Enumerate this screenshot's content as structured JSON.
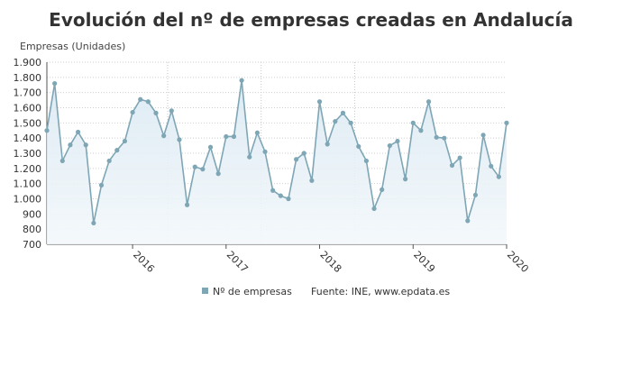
{
  "chart_data": {
    "type": "area",
    "title": "Evolución del nº de empresas creadas en Andalucía",
    "ylabel": "Empresas (Unidades)",
    "xlabel": "",
    "ylim": [
      700,
      1900
    ],
    "yticks": [
      "700",
      "800",
      "900",
      "1.000",
      "1.100",
      "1.200",
      "1.300",
      "1.400",
      "1.500",
      "1.600",
      "1.700",
      "1.800",
      "1.900"
    ],
    "x_tick_labels": [
      {
        "label": "2016",
        "index": 11
      },
      {
        "label": "2017",
        "index": 23
      },
      {
        "label": "2018",
        "index": 35
      },
      {
        "label": "2019",
        "index": 47
      },
      {
        "label": "2020",
        "index": 59
      }
    ],
    "grid": true,
    "legend_position": "bottom",
    "series": [
      {
        "name": "Nº de empresas",
        "color": "#7ea6b5",
        "values": [
          1450,
          1760,
          1250,
          1355,
          1440,
          1355,
          840,
          1090,
          1250,
          1320,
          1380,
          1570,
          1655,
          1640,
          1565,
          1415,
          1580,
          1390,
          960,
          1210,
          1195,
          1340,
          1165,
          1410,
          1410,
          1780,
          1275,
          1435,
          1310,
          1055,
          1020,
          1000,
          1260,
          1300,
          1120,
          1640,
          1360,
          1510,
          1565,
          1500,
          1345,
          1250,
          935,
          1060,
          1350,
          1380,
          1130,
          1500,
          1450,
          1640,
          1405,
          1400,
          1220,
          1270,
          855,
          1025,
          1420,
          1215,
          1145,
          1500
        ]
      }
    ],
    "source": "Fuente: INE, www.epdata.es"
  }
}
